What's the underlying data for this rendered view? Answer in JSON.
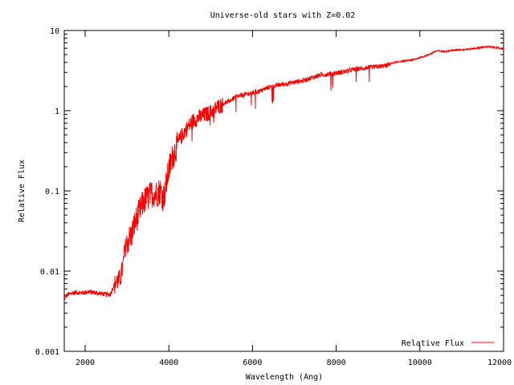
{
  "chart_data": {
    "type": "line",
    "title": "Universe-old stars with Z=0.02",
    "xlabel": "Wavelength (Ang)",
    "ylabel": "Relative Flux",
    "xlim": [
      1500,
      12000
    ],
    "ylim": [
      0.001,
      10
    ],
    "yscale": "log",
    "grid": false,
    "legend_position": "bottom-right",
    "xticks": [
      2000,
      4000,
      6000,
      8000,
      10000,
      12000
    ],
    "xtick_labels": [
      "2000",
      "4000",
      "6000",
      "8000",
      "10000",
      "12000"
    ],
    "yticks": [
      0.001,
      0.01,
      0.1,
      1,
      10
    ],
    "ytick_labels": [
      "0.001",
      "0.01",
      "0.1",
      "1",
      "10"
    ],
    "series": [
      {
        "name": "Relative Flux",
        "color": "#ff0000",
        "x": [
          1500,
          1550,
          1600,
          1700,
          1800,
          1900,
          2000,
          2100,
          2200,
          2300,
          2400,
          2500,
          2600,
          2700,
          2750,
          2800,
          2850,
          2900,
          2950,
          3000,
          3100,
          3200,
          3300,
          3400,
          3500,
          3600,
          3700,
          3800,
          3850,
          3900,
          4000,
          4100,
          4200,
          4300,
          4400,
          4500,
          4600,
          4700,
          4800,
          4900,
          5000,
          5100,
          5200,
          5400,
          5600,
          5800,
          6000,
          6200,
          6400,
          6600,
          6800,
          7000,
          7200,
          7400,
          7600,
          7800,
          8000,
          8200,
          8400,
          8600,
          8800,
          9000,
          9200,
          9300,
          9500,
          9800,
          10000,
          10200,
          10400,
          10600,
          10800,
          11000,
          11200,
          11400,
          11600,
          11800,
          12000
        ],
        "y": [
          0.0045,
          0.005,
          0.0052,
          0.0054,
          0.0055,
          0.0054,
          0.0055,
          0.0056,
          0.0055,
          0.0054,
          0.0053,
          0.0052,
          0.0052,
          0.007,
          0.008,
          0.008,
          0.009,
          0.012,
          0.02,
          0.025,
          0.03,
          0.045,
          0.06,
          0.08,
          0.09,
          0.1,
          0.1,
          0.11,
          0.09,
          0.1,
          0.2,
          0.3,
          0.4,
          0.5,
          0.6,
          0.7,
          0.8,
          0.85,
          0.9,
          0.95,
          1.0,
          1.1,
          1.2,
          1.3,
          1.5,
          1.6,
          1.7,
          1.8,
          2.0,
          2.1,
          2.2,
          2.3,
          2.4,
          2.6,
          2.8,
          2.9,
          3.0,
          3.1,
          3.3,
          3.4,
          3.5,
          3.6,
          3.7,
          3.9,
          4.1,
          4.3,
          4.6,
          5.0,
          5.6,
          5.5,
          5.7,
          5.8,
          5.9,
          6.1,
          6.3,
          6.2,
          5.9
        ]
      }
    ]
  }
}
